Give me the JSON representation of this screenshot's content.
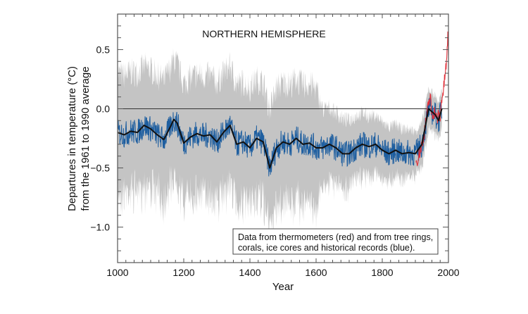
{
  "chart_data": {
    "type": "line",
    "title": "NORTHERN HEMISPHERE",
    "xlabel": "Year",
    "ylabel_line1": "Departures in temperature (°C)",
    "ylabel_line2": "from the 1961 to 1990 average",
    "xlim": [
      1000,
      2000
    ],
    "ylim": [
      -1.3,
      0.8
    ],
    "xticks": [
      1000,
      1200,
      1400,
      1600,
      1800,
      2000
    ],
    "xtick_labels": [
      "1000",
      "1200",
      "1400",
      "1600",
      "1800",
      "2000"
    ],
    "yticks": [
      0.5,
      0.0,
      -0.5,
      -1.0
    ],
    "ytick_labels": [
      "0.5",
      "0.0",
      "−0.5",
      "−1.0"
    ],
    "grid": false,
    "reference_line": 0.0,
    "annotation_line1": "Data from thermometers (red) and from tree rings,",
    "annotation_line2": "corals, ice cores and historical records (blue).",
    "colors": {
      "proxy": "#1f5fa0",
      "thermometer": "#e0303a",
      "smoothed": "#111111",
      "uncertainty": "#c4c4c4"
    },
    "series": [
      {
        "key": "smoothed",
        "x": [
          1000,
          1020,
          1040,
          1060,
          1080,
          1100,
          1120,
          1140,
          1160,
          1170,
          1180,
          1200,
          1220,
          1240,
          1260,
          1280,
          1300,
          1320,
          1340,
          1360,
          1380,
          1400,
          1420,
          1440,
          1460,
          1480,
          1500,
          1520,
          1540,
          1560,
          1580,
          1600,
          1620,
          1640,
          1660,
          1680,
          1700,
          1720,
          1740,
          1760,
          1780,
          1800,
          1820,
          1840,
          1860,
          1880,
          1900,
          1920,
          1940,
          1960,
          1970,
          1980
        ],
        "y": [
          -0.2,
          -0.22,
          -0.19,
          -0.2,
          -0.14,
          -0.17,
          -0.22,
          -0.26,
          -0.15,
          -0.09,
          -0.12,
          -0.29,
          -0.24,
          -0.21,
          -0.23,
          -0.22,
          -0.28,
          -0.2,
          -0.14,
          -0.3,
          -0.28,
          -0.33,
          -0.25,
          -0.28,
          -0.5,
          -0.33,
          -0.28,
          -0.3,
          -0.25,
          -0.3,
          -0.29,
          -0.33,
          -0.33,
          -0.3,
          -0.33,
          -0.38,
          -0.38,
          -0.33,
          -0.3,
          -0.32,
          -0.3,
          -0.35,
          -0.38,
          -0.35,
          -0.38,
          -0.37,
          -0.38,
          -0.3,
          0.0,
          -0.05,
          -0.1,
          0.0
        ]
      },
      {
        "key": "uncertainty_halfwidth",
        "x": [
          1000,
          1600,
          1620,
          1980
        ],
        "y": [
          0.5,
          0.5,
          0.32,
          0.15
        ]
      },
      {
        "key": "thermometer",
        "x": [
          1902,
          1910,
          1920,
          1930,
          1940,
          1945,
          1950,
          1960,
          1965,
          1970,
          1975,
          1980,
          1985,
          1990,
          1995,
          1998,
          2000
        ],
        "y": [
          -0.45,
          -0.4,
          -0.3,
          -0.15,
          0.05,
          0.1,
          -0.05,
          -0.02,
          -0.1,
          -0.05,
          -0.08,
          0.1,
          0.15,
          0.3,
          0.4,
          0.65,
          0.5
        ]
      }
    ]
  }
}
